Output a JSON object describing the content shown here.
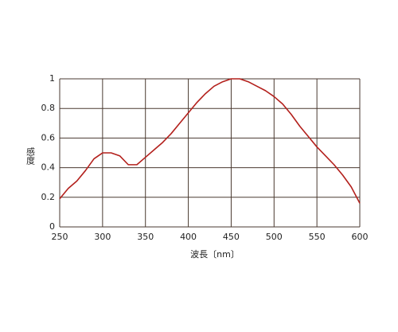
{
  "chart_data": {
    "type": "line",
    "xlabel": "波長〔nm〕",
    "ylabel": "感度",
    "xlim": [
      250,
      600
    ],
    "ylim": [
      0,
      1
    ],
    "xticks": [
      250,
      300,
      350,
      400,
      450,
      500,
      550,
      600
    ],
    "yticks": [
      0,
      0.2,
      0.4,
      0.6,
      0.8,
      1
    ],
    "grid": true,
    "x": [
      250,
      260,
      270,
      280,
      290,
      300,
      310,
      320,
      330,
      340,
      350,
      360,
      370,
      380,
      390,
      400,
      410,
      420,
      430,
      440,
      450,
      460,
      470,
      480,
      490,
      500,
      510,
      520,
      530,
      540,
      550,
      560,
      570,
      580,
      590,
      600
    ],
    "series": [
      {
        "color": "#b3201c",
        "values": [
          0.19,
          0.26,
          0.31,
          0.38,
          0.46,
          0.5,
          0.5,
          0.48,
          0.42,
          0.42,
          0.47,
          0.52,
          0.57,
          0.63,
          0.7,
          0.77,
          0.84,
          0.9,
          0.95,
          0.98,
          1.0,
          1.0,
          0.98,
          0.95,
          0.92,
          0.88,
          0.83,
          0.76,
          0.68,
          0.61,
          0.54,
          0.48,
          0.42,
          0.35,
          0.27,
          0.16
        ]
      }
    ]
  }
}
